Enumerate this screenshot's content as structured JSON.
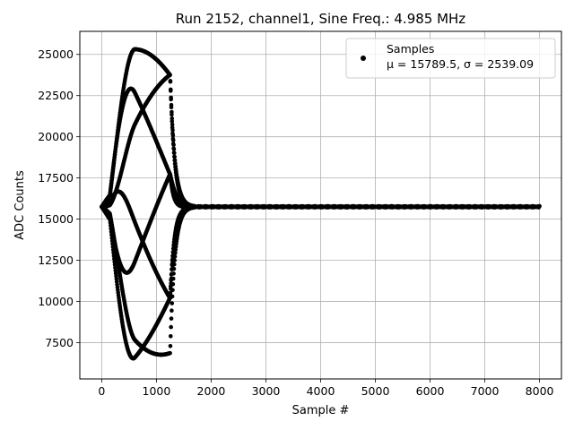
{
  "chart_data": {
    "type": "scatter",
    "title": "Run 2152, channel1, Sine Freq.: 4.985 MHz",
    "xlabel": "Sample #",
    "ylabel": "ADC Counts",
    "xlim": [
      -400,
      8400
    ],
    "ylim": [
      5300,
      26400
    ],
    "xticks": [
      0,
      1000,
      2000,
      3000,
      4000,
      5000,
      6000,
      7000,
      8000
    ],
    "yticks": [
      7500,
      10000,
      12500,
      15000,
      17500,
      20000,
      22500,
      25000
    ],
    "grid": true,
    "legend_position": "top-right",
    "marker_color": "#000000",
    "series": [
      {
        "name": "Samples",
        "stats_label": "μ = 15789.5, σ = 2539.09",
        "n_samples": 8000,
        "baseline": 15750,
        "sine_frequency_mhz": 4.985,
        "pulse": {
          "start_sample": 0,
          "peak_amplitude": 9650,
          "peak_sample": 600,
          "plateau_end_sample": 1250,
          "decay_end_sample": 1700,
          "num_phases": 7
        },
        "y_min": 6100,
        "y_max": 25400
      }
    ]
  }
}
